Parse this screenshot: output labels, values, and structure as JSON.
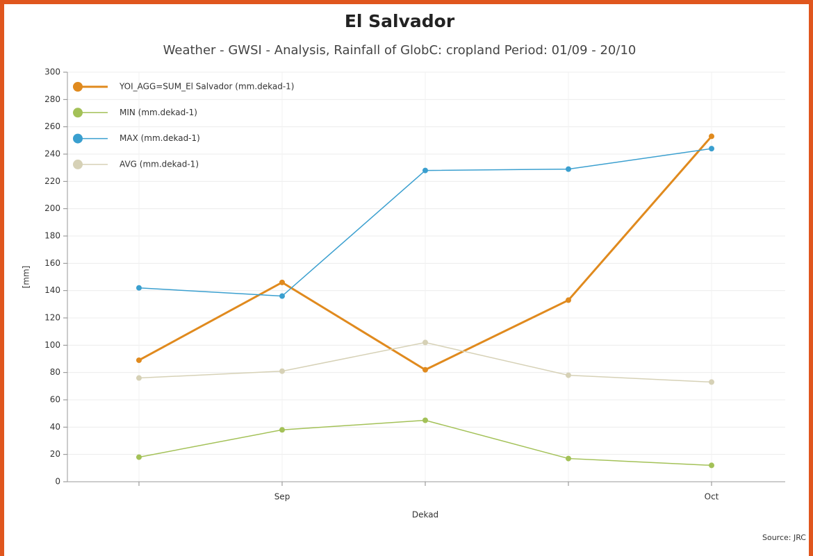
{
  "chart_data": {
    "type": "line",
    "title": "El Salvador",
    "subtitle": "Weather - GWSI - Analysis, Rainfall of GlobC: cropland  Period: 01/09 - 20/10",
    "x_label": "Dekad",
    "y_label": "[mm]",
    "source": "Source: JRC",
    "categories": [
      null,
      "Sep",
      null,
      null,
      "Oct"
    ],
    "series": [
      {
        "name": "YOI_AGG=SUM_El Salvador (mm.dekad-1)",
        "color": "#e08a1e",
        "values": [
          89,
          146,
          82,
          133,
          253
        ]
      },
      {
        "name": "MIN (mm.dekad-1)",
        "color": "#a3c157",
        "values": [
          18,
          38,
          45,
          17,
          12
        ]
      },
      {
        "name": "MAX (mm.dekad-1)",
        "color": "#3a9fcf",
        "values": [
          142,
          136,
          228,
          229,
          244
        ]
      },
      {
        "name": "AVG (mm.dekad-1)",
        "color": "#d6d1b6",
        "values": [
          76,
          81,
          102,
          78,
          73
        ]
      }
    ],
    "ylim": [
      0,
      300
    ],
    "yticks": [
      0,
      20,
      40,
      60,
      80,
      100,
      120,
      140,
      160,
      180,
      200,
      220,
      240,
      260,
      280,
      300
    ],
    "grid": true,
    "legend": "top-left"
  }
}
